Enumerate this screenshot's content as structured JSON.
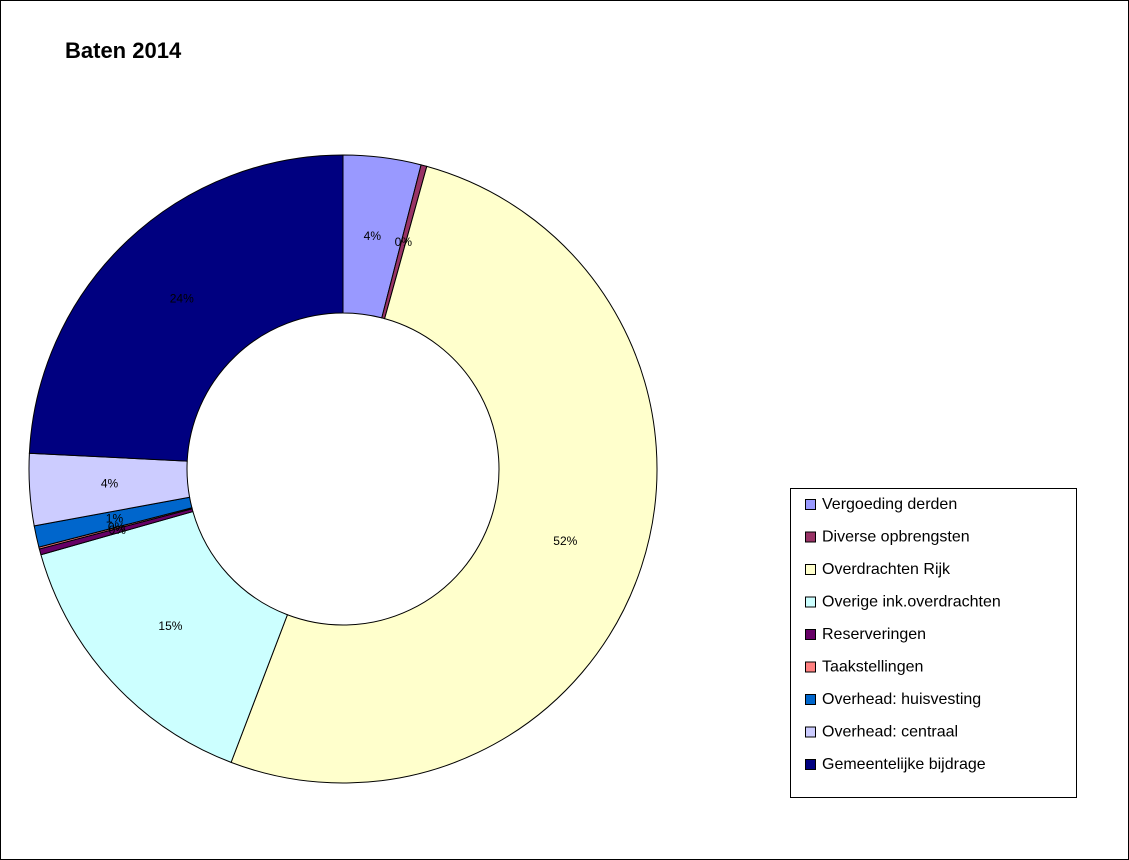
{
  "chart_data": {
    "type": "donut",
    "title": "Baten 2014",
    "categories": [
      "Vergoeding derden",
      "Diverse opbrengsten",
      "Overdrachten Rijk",
      "Overige ink.overdrachten",
      "Reserveringen",
      "Taakstellingen",
      "Overhead: huisvesting",
      "Overhead: centraal",
      "Gemeentelijke bijdrage"
    ],
    "values": [
      4.0,
      0.3,
      51.5,
      14.8,
      0.3,
      0.1,
      1.1,
      3.7,
      24.2
    ],
    "value_labels": [
      "4%",
      "0%",
      "52%",
      "15%",
      "0%",
      "0%",
      "1%",
      "4%",
      "24%"
    ],
    "colors": [
      "#9999ff",
      "#993366",
      "#ffffcc",
      "#ccffff",
      "#660066",
      "#ff8080",
      "#0066cc",
      "#ccccff",
      "#000080"
    ],
    "legend": "right"
  }
}
